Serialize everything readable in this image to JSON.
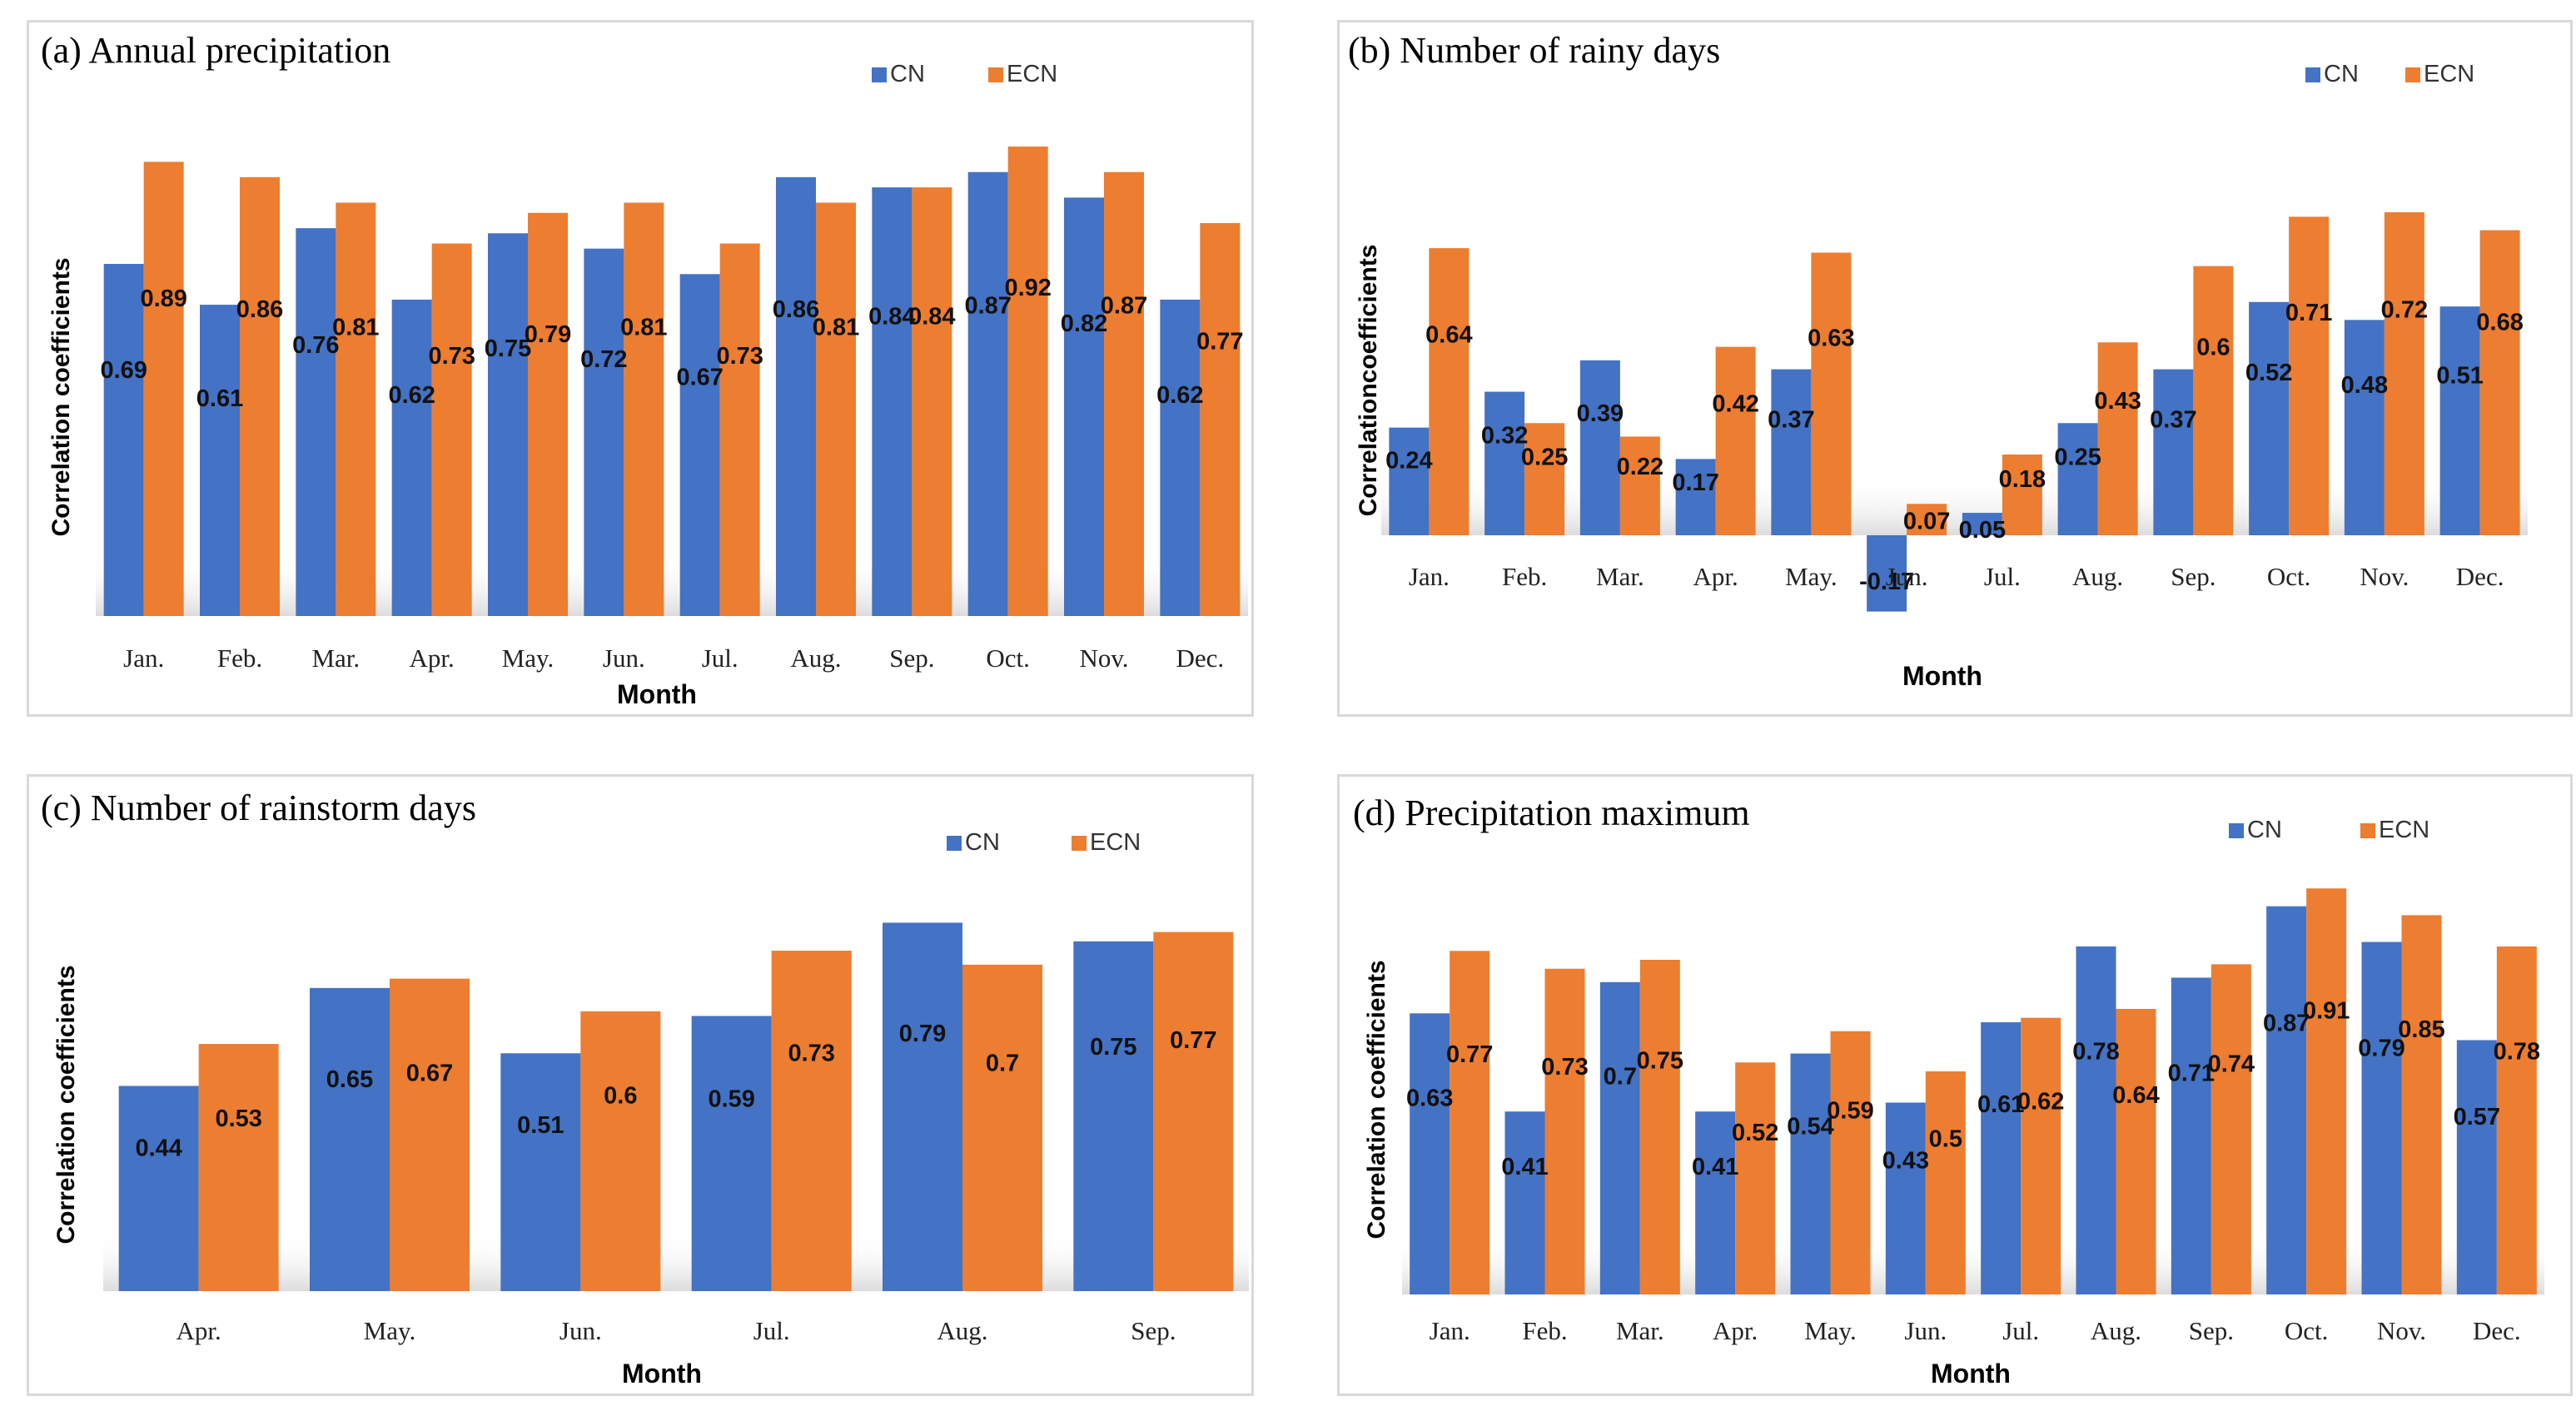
{
  "legend": {
    "series1": "CN",
    "series2": "ECN"
  },
  "colors": {
    "cn": "#4472C4",
    "ecn": "#ED7D31"
  },
  "chart_data": [
    {
      "type": "bar",
      "title": "(a) Annual precipitation",
      "xlabel": "Month",
      "ylabel": "Correlation coefficients",
      "ylim": [
        0,
        1.0
      ],
      "categories": [
        "Jan.",
        "Feb.",
        "Mar.",
        "Apr.",
        "May.",
        "Jun.",
        "Jul.",
        "Aug.",
        "Sep.",
        "Oct.",
        "Nov.",
        "Dec."
      ],
      "series": [
        {
          "name": "CN",
          "values": [
            0.69,
            0.61,
            0.76,
            0.62,
            0.75,
            0.72,
            0.67,
            0.86,
            0.84,
            0.87,
            0.82,
            0.62
          ]
        },
        {
          "name": "ECN",
          "values": [
            0.89,
            0.86,
            0.81,
            0.73,
            0.79,
            0.81,
            0.73,
            0.81,
            0.84,
            0.92,
            0.87,
            0.77
          ]
        }
      ]
    },
    {
      "type": "bar",
      "title": "(b) Number of rainy days",
      "xlabel": "Month",
      "ylabel": "Correlationcoefficients",
      "ylim": [
        -0.17,
        0.72
      ],
      "categories": [
        "Jan.",
        "Feb.",
        "Mar.",
        "Apr.",
        "May.",
        "Jun.",
        "Jul.",
        "Aug.",
        "Sep.",
        "Oct.",
        "Nov.",
        "Dec."
      ],
      "series": [
        {
          "name": "CN",
          "values": [
            0.24,
            0.32,
            0.39,
            0.17,
            0.37,
            -0.17,
            0.05,
            0.25,
            0.37,
            0.52,
            0.48,
            0.51
          ]
        },
        {
          "name": "ECN",
          "values": [
            0.64,
            0.25,
            0.22,
            0.42,
            0.63,
            0.07,
            0.18,
            0.43,
            0.6,
            0.71,
            0.72,
            0.68
          ]
        }
      ]
    },
    {
      "type": "bar",
      "title": "(c) Number of rainstorm days",
      "xlabel": "Month",
      "ylabel": "Correlation coefficients",
      "ylim": [
        0,
        0.88
      ],
      "categories": [
        "Apr.",
        "May.",
        "Jun.",
        "Jul.",
        "Aug.",
        "Sep."
      ],
      "series": [
        {
          "name": "CN",
          "values": [
            0.44,
            0.65,
            0.51,
            0.59,
            0.79,
            0.75
          ]
        },
        {
          "name": "ECN",
          "values": [
            0.53,
            0.67,
            0.6,
            0.73,
            0.7,
            0.77
          ]
        }
      ]
    },
    {
      "type": "bar",
      "title": "(d) Precipitation maximum",
      "xlabel": "Month",
      "ylabel": "Correlation coefficients",
      "ylim": [
        0,
        1.0
      ],
      "categories": [
        "Jan.",
        "Feb.",
        "Mar.",
        "Apr.",
        "May.",
        "Jun.",
        "Jul.",
        "Aug.",
        "Sep.",
        "Oct.",
        "Nov.",
        "Dec."
      ],
      "series": [
        {
          "name": "CN",
          "values": [
            0.63,
            0.41,
            0.7,
            0.41,
            0.54,
            0.43,
            0.61,
            0.78,
            0.71,
            0.87,
            0.79,
            0.57
          ]
        },
        {
          "name": "ECN",
          "values": [
            0.77,
            0.73,
            0.75,
            0.52,
            0.59,
            0.5,
            0.62,
            0.64,
            0.74,
            0.91,
            0.85,
            0.78
          ]
        }
      ]
    }
  ]
}
